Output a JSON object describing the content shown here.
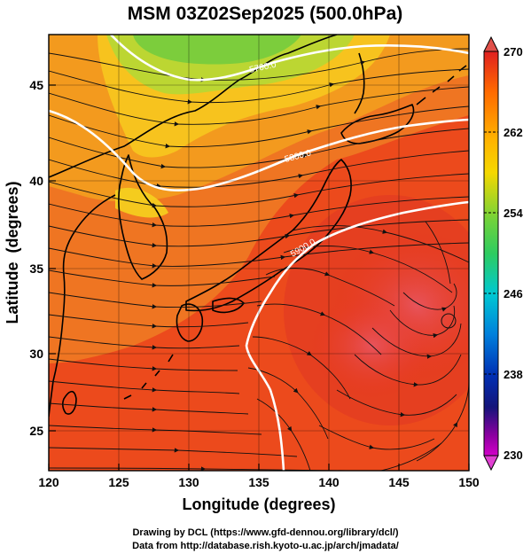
{
  "title": "MSM 03Z02Sep2025 (500.0hPa)",
  "xlabel": "Longitude (degrees)",
  "ylabel": "Latitude  (degrees)",
  "xticks": [
    "120",
    "125",
    "130",
    "135",
    "140",
    "145",
    "150"
  ],
  "yticks": [
    "25",
    "30",
    "35",
    "40",
    "45"
  ],
  "colorbar": {
    "ticks": [
      "270",
      "262",
      "254",
      "246",
      "238",
      "230"
    ],
    "min": 230,
    "max": 270
  },
  "contours": [
    {
      "label": "5700.0"
    },
    {
      "label": "5800.0"
    },
    {
      "label": "5900.0"
    }
  ],
  "credits": [
    "Drawing by DCL (https://www.gfd-dennou.org/library/dcl/)",
    "Data from http://database.rish.kyoto-u.ac.jp/arch/jmadata/"
  ],
  "colors": {
    "hot": "#e8321e",
    "warm": "#f0781e",
    "mid": "#f5a01e",
    "yellow": "#f5d21e",
    "green": "#82d23c",
    "colorbar_stops": [
      "#e02020",
      "#ff8c00",
      "#f5d800",
      "#2ecc40",
      "#00b4dc",
      "#0050c8",
      "#0a0a8c",
      "#c800c8"
    ]
  },
  "chart_data": {
    "type": "heatmap",
    "title": "MSM 03Z02Sep2025 (500.0hPa)",
    "xlabel": "Longitude (degrees)",
    "ylabel": "Latitude  (degrees)",
    "xlim": [
      120,
      150
    ],
    "ylim": [
      22.5,
      47.5
    ],
    "colorbar_range": [
      230,
      270
    ],
    "colorbar_ticks": [
      230,
      238,
      246,
      254,
      262,
      270
    ],
    "contour_levels": [
      5700,
      5800,
      5900
    ]
  }
}
